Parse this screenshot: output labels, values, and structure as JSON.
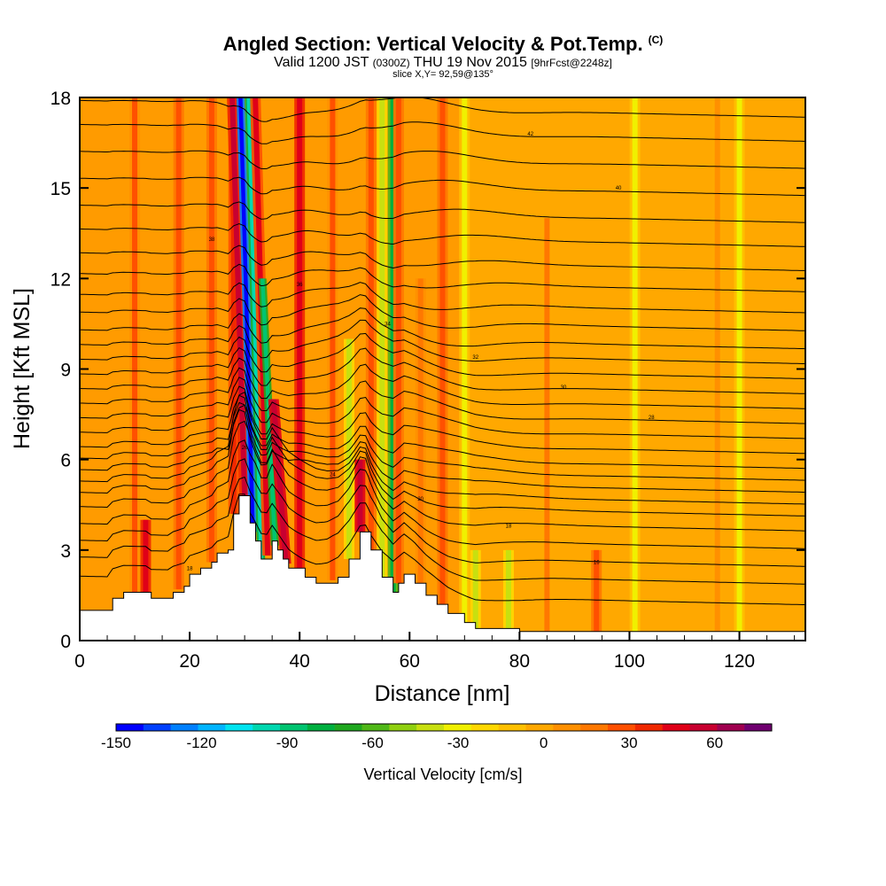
{
  "header": {
    "title": "Angled Section: Vertical Velocity & Pot.Temp.",
    "title_units": "(C)",
    "valid_prefix": "Valid 1200 JST",
    "valid_utc": "(0300Z)",
    "valid_date": "THU 19 Nov 2015",
    "forecast": "[9hrFcst@2248z]",
    "slice": "slice X,Y= 92,59@135°"
  },
  "chart_data": {
    "type": "heatmap",
    "xlabel": "Distance [nm]",
    "ylabel": "Height [Kft MSL]",
    "xlim": [
      0,
      132
    ],
    "ylim": [
      0,
      18
    ],
    "x_ticks": [
      0,
      20,
      40,
      60,
      80,
      100,
      120
    ],
    "y_ticks": [
      0,
      3,
      6,
      9,
      12,
      15,
      18
    ],
    "x_tick_labels": [
      "0",
      "20",
      "40",
      "60",
      "80",
      "100",
      "120"
    ],
    "y_tick_labels": [
      "0",
      "3",
      "6",
      "9",
      "12",
      "15",
      "18"
    ],
    "colorbar": {
      "title": "Vertical Velocity [cm/s]",
      "min": -150,
      "max": 80,
      "step": 10,
      "tick_values": [
        -150,
        -120,
        -90,
        -60,
        -30,
        0,
        30,
        60
      ],
      "tick_labels": [
        "-150",
        "-120",
        "-90",
        "-60",
        "-30",
        "0",
        "30",
        "60"
      ],
      "colors": [
        "#0000ff",
        "#0040ff",
        "#0080ff",
        "#00b4ff",
        "#00e4f0",
        "#00d8b0",
        "#00c470",
        "#00b040",
        "#20a820",
        "#50b818",
        "#90d010",
        "#c8e010",
        "#f0f000",
        "#ffd800",
        "#ffc000",
        "#ffa800",
        "#ff9000",
        "#ff7800",
        "#ff5000",
        "#f02800",
        "#e00018",
        "#c80030",
        "#a00050",
        "#700070"
      ]
    },
    "terrain_profile": [
      [
        0,
        1
      ],
      [
        5,
        1
      ],
      [
        6,
        1.4
      ],
      [
        8,
        1.6
      ],
      [
        12,
        1.6
      ],
      [
        13,
        1.4
      ],
      [
        16,
        1.4
      ],
      [
        17,
        1.6
      ],
      [
        19,
        1.8
      ],
      [
        20,
        2.2
      ],
      [
        22,
        2.4
      ],
      [
        24,
        2.6
      ],
      [
        25,
        2.9
      ],
      [
        27,
        3
      ],
      [
        28,
        4.2
      ],
      [
        29,
        4.8
      ],
      [
        30,
        4.8
      ],
      [
        31,
        3.9
      ],
      [
        32,
        3.3
      ],
      [
        33,
        2.7
      ],
      [
        34,
        2.7
      ],
      [
        35,
        3.3
      ],
      [
        36,
        3
      ],
      [
        37,
        2.7
      ],
      [
        38,
        2.4
      ],
      [
        41,
        2.1
      ],
      [
        43,
        1.9
      ],
      [
        45,
        1.9
      ],
      [
        47,
        2.1
      ],
      [
        49,
        2.7
      ],
      [
        51,
        3.6
      ],
      [
        52,
        3.6
      ],
      [
        53,
        3
      ],
      [
        55,
        2.1
      ],
      [
        57,
        1.6
      ],
      [
        58,
        1.9
      ],
      [
        59,
        2.2
      ],
      [
        61,
        1.9
      ],
      [
        63,
        1.5
      ],
      [
        65,
        1.2
      ],
      [
        67,
        0.9
      ],
      [
        70,
        0.6
      ],
      [
        72,
        0.4
      ],
      [
        80,
        0.3
      ],
      [
        132,
        0.3
      ]
    ],
    "velocity_columns": [
      {
        "x": 10,
        "ztop": 18,
        "value": 18
      },
      {
        "x": 12,
        "ztop": 4,
        "value": 40
      },
      {
        "x": 18,
        "ztop": 18,
        "value": 22
      },
      {
        "x": 24,
        "ztop": 18,
        "value": 20
      },
      {
        "x": 28,
        "ztop": 18,
        "value": 32
      },
      {
        "x": 30,
        "ztop": 18,
        "value": 48
      },
      {
        "x": 31.5,
        "ztop": 18,
        "value": -130
      },
      {
        "x": 33,
        "ztop": 18,
        "value": -80
      },
      {
        "x": 34.2,
        "ztop": 18,
        "value": 38
      },
      {
        "x": 35.5,
        "ztop": 12,
        "value": -70
      },
      {
        "x": 37.5,
        "ztop": 8,
        "value": 50
      },
      {
        "x": 40,
        "ztop": 18,
        "value": 44
      },
      {
        "x": 46,
        "ztop": 18,
        "value": 18
      },
      {
        "x": 49,
        "ztop": 10,
        "value": -20
      },
      {
        "x": 51,
        "ztop": 6,
        "value": 55
      },
      {
        "x": 53,
        "ztop": 18,
        "value": 24
      },
      {
        "x": 55,
        "ztop": 18,
        "value": -20
      },
      {
        "x": 57,
        "ztop": 18,
        "value": -60
      },
      {
        "x": 58,
        "ztop": 18,
        "value": 20
      },
      {
        "x": 62,
        "ztop": 12,
        "value": 14
      },
      {
        "x": 66,
        "ztop": 18,
        "value": 20
      },
      {
        "x": 70,
        "ztop": 18,
        "value": -10
      },
      {
        "x": 72,
        "ztop": 3,
        "value": -20
      },
      {
        "x": 78,
        "ztop": 3,
        "value": -15
      },
      {
        "x": 85,
        "ztop": 14,
        "value": 8
      },
      {
        "x": 94,
        "ztop": 3,
        "value": 20
      },
      {
        "x": 101,
        "ztop": 18,
        "value": -5
      },
      {
        "x": 116,
        "ztop": 18,
        "value": 4
      },
      {
        "x": 120,
        "ztop": 18,
        "value": -5
      }
    ],
    "isentropes": [
      {
        "z0": 1.3,
        "label": "18"
      },
      {
        "z0": 2.0,
        "label": ""
      },
      {
        "z0": 2.6,
        "label": "16"
      },
      {
        "z0": 3.2,
        "label": ""
      },
      {
        "z0": 3.8,
        "label": "18"
      },
      {
        "z0": 4.3,
        "label": ""
      },
      {
        "z0": 4.7,
        "label": "20"
      },
      {
        "z0": 5.1,
        "label": ""
      },
      {
        "z0": 5.5,
        "label": "24"
      },
      {
        "z0": 5.9,
        "label": ""
      },
      {
        "z0": 6.4,
        "label": "26"
      },
      {
        "z0": 6.9,
        "label": ""
      },
      {
        "z0": 7.4,
        "label": "28"
      },
      {
        "z0": 7.9,
        "label": ""
      },
      {
        "z0": 8.4,
        "label": "30"
      },
      {
        "z0": 8.9,
        "label": ""
      },
      {
        "z0": 9.4,
        "label": "32"
      },
      {
        "z0": 9.9,
        "label": ""
      },
      {
        "z0": 10.5,
        "label": "34"
      },
      {
        "z0": 11.1,
        "label": ""
      },
      {
        "z0": 11.8,
        "label": "36"
      },
      {
        "z0": 12.5,
        "label": ""
      },
      {
        "z0": 13.3,
        "label": "38"
      },
      {
        "z0": 14.1,
        "label": ""
      },
      {
        "z0": 15.0,
        "label": "40"
      },
      {
        "z0": 15.9,
        "label": ""
      },
      {
        "z0": 16.8,
        "label": "42"
      },
      {
        "z0": 17.6,
        "label": ""
      }
    ]
  }
}
